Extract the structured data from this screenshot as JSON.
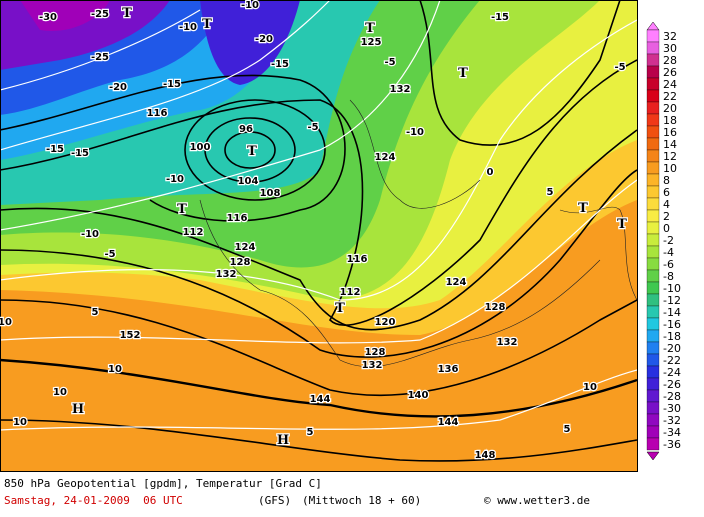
{
  "map": {
    "labels": [
      "-30",
      "-25",
      "T",
      "-10",
      "T",
      "-20",
      "-15",
      "-25",
      "-20",
      "-15",
      "116",
      "100",
      "96",
      "T",
      "-10",
      "104",
      "108",
      "112",
      "116",
      "124",
      "128",
      "132",
      "T",
      "-5",
      "-15",
      "-15",
      "-10",
      "5",
      "10",
      "152",
      "10",
      "H",
      "10",
      "10",
      "144",
      "144",
      "140",
      "148",
      "H",
      "5",
      "T",
      "112",
      "116",
      "120",
      "128",
      "132",
      "136",
      "132",
      "124",
      "128",
      "0",
      "-5",
      "T",
      "-5",
      "132",
      "-15",
      "T",
      "125",
      "124",
      "5",
      "T",
      "T",
      "10",
      "5",
      "-10",
      "-5",
      "-10"
    ]
  },
  "scale": {
    "values": [
      32,
      30,
      28,
      26,
      24,
      22,
      20,
      18,
      16,
      14,
      12,
      10,
      8,
      6,
      4,
      2,
      0,
      -2,
      -4,
      -6,
      -8,
      -10,
      -12,
      -14,
      -16,
      -18,
      -20,
      -22,
      -24,
      -26,
      -28,
      -30,
      -32,
      -34,
      -36
    ],
    "colors": [
      "#ff80ff",
      "#e860e0",
      "#d03090",
      "#b8004a",
      "#c8002a",
      "#d80018",
      "#e82020",
      "#f03818",
      "#f05010",
      "#f06a10",
      "#f48418",
      "#f89c20",
      "#fcb428",
      "#fcc830",
      "#fcdc3c",
      "#f8ec44",
      "#e8f040",
      "#c8ec3c",
      "#a8e43c",
      "#88dc40",
      "#60d048",
      "#40c850",
      "#30c080",
      "#28c8b0",
      "#20c8e0",
      "#20a8f0",
      "#2080f0",
      "#2058e8",
      "#2830e0",
      "#4020d8",
      "#6018d0",
      "#7810c8",
      "#9008c0",
      "#a000b8",
      "#b800b0"
    ]
  },
  "footer": {
    "title": "850 hPa Geopotential [gpdm], Temperatur [Grad C]",
    "date": "Samstag, 24-01-2009  06 UTC",
    "model": "(GFS)",
    "run": "(Mittwoch 18 + 60)",
    "credit": "© www.wetter3.de"
  }
}
